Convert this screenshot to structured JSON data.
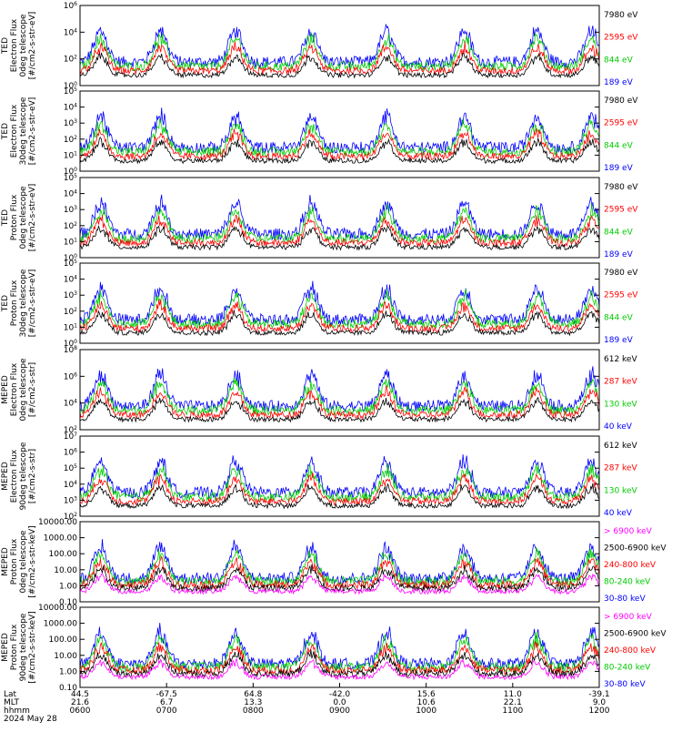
{
  "chart_data": {
    "type": "line",
    "time_axis": {
      "rows": [
        {
          "label": "Lat",
          "values": [
            "44.5",
            "-67.5",
            "64.8",
            "-42.0",
            "15.6",
            "11.0",
            "-39.1"
          ]
        },
        {
          "label": "MLT",
          "values": [
            "21.6",
            "6.7",
            "13.3",
            "0.0",
            "10.6",
            "22.1",
            "9.0"
          ]
        },
        {
          "label": "hhmm",
          "values": [
            "0600",
            "0700",
            "0800",
            "0900",
            "1000",
            "1100",
            "1200"
          ]
        }
      ],
      "date": "2024 May 28"
    },
    "panels": [
      {
        "ylabel": [
          "TED",
          "Electron Flux",
          "0deg telescope",
          "[#/cm2-s-str-eV]"
        ],
        "yscale": "log",
        "ticks": [
          {
            "label": "10^6",
            "frac": 1.0
          },
          {
            "label": "10^4",
            "frac": 0.6667
          },
          {
            "label": "10^2",
            "frac": 0.3333
          },
          {
            "label": "10^0",
            "frac": 0.0
          }
        ],
        "legend": [
          {
            "text": "7980 eV",
            "color": "#000000"
          },
          {
            "text": "2595 eV",
            "color": "#ff0000"
          },
          {
            "text": "844 eV",
            "color": "#00cc00"
          },
          {
            "text": "189 eV",
            "color": "#0000ff"
          }
        ]
      },
      {
        "ylabel": [
          "TED",
          "Electron Flux",
          "30deg telescope",
          "[#/cm2-s-str-eV]"
        ],
        "yscale": "log",
        "ticks": [
          {
            "label": "10^5",
            "frac": 1.0
          },
          {
            "label": "10^4",
            "frac": 0.8
          },
          {
            "label": "10^3",
            "frac": 0.6
          },
          {
            "label": "10^2",
            "frac": 0.4
          },
          {
            "label": "10^1",
            "frac": 0.2
          },
          {
            "label": "10^0",
            "frac": 0.0
          }
        ],
        "legend": [
          {
            "text": "7980 eV",
            "color": "#000000"
          },
          {
            "text": "2595 eV",
            "color": "#ff0000"
          },
          {
            "text": "844 eV",
            "color": "#00cc00"
          },
          {
            "text": "189 eV",
            "color": "#0000ff"
          }
        ]
      },
      {
        "ylabel": [
          "TED",
          "Proton Flux",
          "0deg telescope",
          "[#/cm2-s-str-eV]"
        ],
        "yscale": "log",
        "ticks": [
          {
            "label": "10^5",
            "frac": 1.0
          },
          {
            "label": "10^4",
            "frac": 0.8
          },
          {
            "label": "10^3",
            "frac": 0.6
          },
          {
            "label": "10^2",
            "frac": 0.4
          },
          {
            "label": "10^1",
            "frac": 0.2
          },
          {
            "label": "10^0",
            "frac": 0.0
          }
        ],
        "legend": [
          {
            "text": "7980 eV",
            "color": "#000000"
          },
          {
            "text": "2595 eV",
            "color": "#ff0000"
          },
          {
            "text": "844 eV",
            "color": "#00cc00"
          },
          {
            "text": "189 eV",
            "color": "#0000ff"
          }
        ]
      },
      {
        "ylabel": [
          "TED",
          "Proton Flux",
          "30deg telescope",
          "[#/cm2-s-str-eV]"
        ],
        "yscale": "log",
        "ticks": [
          {
            "label": "10^5",
            "frac": 1.0
          },
          {
            "label": "10^4",
            "frac": 0.8
          },
          {
            "label": "10^3",
            "frac": 0.6
          },
          {
            "label": "10^2",
            "frac": 0.4
          },
          {
            "label": "10^1",
            "frac": 0.2
          },
          {
            "label": "10^0",
            "frac": 0.0
          }
        ],
        "legend": [
          {
            "text": "7980 eV",
            "color": "#000000"
          },
          {
            "text": "2595 eV",
            "color": "#ff0000"
          },
          {
            "text": "844 eV",
            "color": "#00cc00"
          },
          {
            "text": "189 eV",
            "color": "#0000ff"
          }
        ]
      },
      {
        "ylabel": [
          "MEPED",
          "Electron Flux",
          "0deg telescope",
          "[#/cm2-s-str]"
        ],
        "yscale": "log",
        "ticks": [
          {
            "label": "10^8",
            "frac": 1.0
          },
          {
            "label": "10^6",
            "frac": 0.6667
          },
          {
            "label": "10^4",
            "frac": 0.3333
          },
          {
            "label": "10^2",
            "frac": 0.0
          }
        ],
        "legend": [
          {
            "text": "612 keV",
            "color": "#000000"
          },
          {
            "text": "287 keV",
            "color": "#ff0000"
          },
          {
            "text": "130 keV",
            "color": "#00cc00"
          },
          {
            "text": "40 keV",
            "color": "#0000ff"
          }
        ]
      },
      {
        "ylabel": [
          "MEPED",
          "Electron Flux",
          "90deg telescope",
          "[#/cm2-s-str]"
        ],
        "yscale": "log",
        "ticks": [
          {
            "label": "10^7",
            "frac": 1.0
          },
          {
            "label": "10^6",
            "frac": 0.8
          },
          {
            "label": "10^5",
            "frac": 0.6
          },
          {
            "label": "10^4",
            "frac": 0.4
          },
          {
            "label": "10^3",
            "frac": 0.2
          },
          {
            "label": "10^2",
            "frac": 0.0
          }
        ],
        "legend": [
          {
            "text": "612 keV",
            "color": "#000000"
          },
          {
            "text": "287 keV",
            "color": "#ff0000"
          },
          {
            "text": "130 keV",
            "color": "#00cc00"
          },
          {
            "text": "40 keV",
            "color": "#0000ff"
          }
        ]
      },
      {
        "ylabel": [
          "MEPED",
          "Proton Flux",
          "0deg telescope",
          "[#/cm2-s-str-keV]"
        ],
        "yscale": "log",
        "ticks": [
          {
            "label": "10000.00",
            "frac": 1.0
          },
          {
            "label": "1000.00",
            "frac": 0.8
          },
          {
            "label": "100.00",
            "frac": 0.6
          },
          {
            "label": "10.00",
            "frac": 0.4
          },
          {
            "label": "1.00",
            "frac": 0.2
          },
          {
            "label": "0.10",
            "frac": 0.0
          }
        ],
        "legend": [
          {
            "text": "> 6900 keV",
            "color": "#ff00ff"
          },
          {
            "text": "2500-6900 keV",
            "color": "#000000"
          },
          {
            "text": "240-800 keV",
            "color": "#ff0000"
          },
          {
            "text": "80-240 keV",
            "color": "#00cc00"
          },
          {
            "text": "30-80 keV",
            "color": "#0000ff"
          }
        ]
      },
      {
        "ylabel": [
          "MEPED",
          "Proton Flux",
          "90deg telescope",
          "[#/cm2-s-str-keV]"
        ],
        "yscale": "log",
        "ticks": [
          {
            "label": "10000.00",
            "frac": 1.0
          },
          {
            "label": "1000.00",
            "frac": 0.8
          },
          {
            "label": "100.00",
            "frac": 0.6
          },
          {
            "label": "10.00",
            "frac": 0.4
          },
          {
            "label": "1.00",
            "frac": 0.2
          },
          {
            "label": "0.10",
            "frac": 0.0
          }
        ],
        "legend": [
          {
            "text": "> 6900 keV",
            "color": "#ff00ff"
          },
          {
            "text": "2500-6900 keV",
            "color": "#000000"
          },
          {
            "text": "240-800 keV",
            "color": "#ff0000"
          },
          {
            "text": "80-240 keV",
            "color": "#00cc00"
          },
          {
            "text": "30-80 keV",
            "color": "#0000ff"
          }
        ]
      }
    ]
  }
}
